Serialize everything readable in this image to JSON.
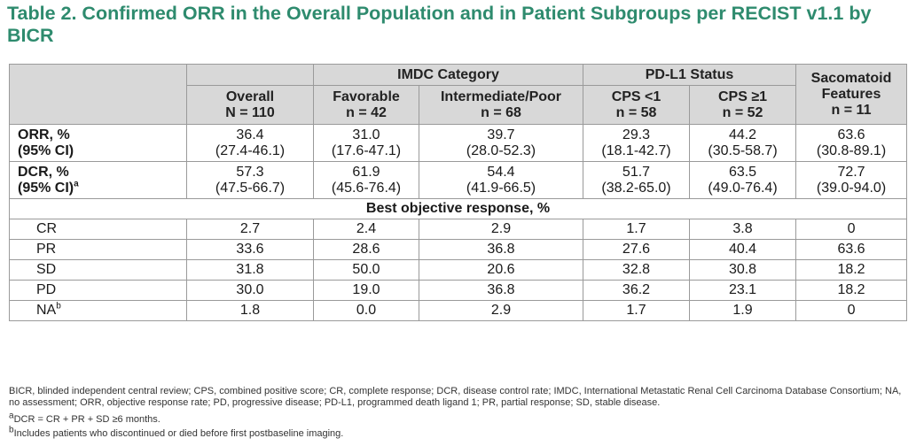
{
  "title": "Table 2. Confirmed ORR in the Overall Population and in Patient Subgroups per RECIST v1.1 by BICR",
  "header": {
    "groups": {
      "imdc": "IMDC Category",
      "pdl1": "PD-L1 Status",
      "sarc_line1": "Sacomatoid"
    },
    "columns": [
      {
        "name": "Overall",
        "n": "N = 110"
      },
      {
        "name": "Favorable",
        "n": "n = 42"
      },
      {
        "name": "Intermediate/Poor",
        "n": "n = 68"
      },
      {
        "name": "CPS <1",
        "n": "n = 58"
      },
      {
        "name": "CPS ≥1",
        "n": "n = 52"
      },
      {
        "name": "Features",
        "n": "n = 11"
      }
    ]
  },
  "rows": {
    "orr": {
      "label1": "ORR, %",
      "label2": "(95% CI)",
      "values": [
        "36.4",
        "31.0",
        "39.7",
        "29.3",
        "44.2",
        "63.6"
      ],
      "ci": [
        "(27.4-46.1)",
        "(17.6-47.1)",
        "(28.0-52.3)",
        "(18.1-42.7)",
        "(30.5-58.7)",
        "(30.8-89.1)"
      ]
    },
    "dcr": {
      "label1": "DCR, %",
      "label2": "(95% CI)",
      "sup": "a",
      "values": [
        "57.3",
        "61.9",
        "54.4",
        "51.7",
        "63.5",
        "72.7"
      ],
      "ci": [
        "(47.5-66.7)",
        "(45.6-76.4)",
        "(41.9-66.5)",
        "(38.2-65.0)",
        "(49.0-76.4)",
        "(39.0-94.0)"
      ]
    },
    "best_response_header": "Best objective response, %",
    "responses": [
      {
        "label": "CR",
        "values": [
          "2.7",
          "2.4",
          "2.9",
          "1.7",
          "3.8",
          "0"
        ]
      },
      {
        "label": "PR",
        "values": [
          "33.6",
          "28.6",
          "36.8",
          "27.6",
          "40.4",
          "63.6"
        ]
      },
      {
        "label": "SD",
        "values": [
          "31.8",
          "50.0",
          "20.6",
          "32.8",
          "30.8",
          "18.2"
        ]
      },
      {
        "label": "PD",
        "values": [
          "30.0",
          "19.0",
          "36.8",
          "36.2",
          "23.1",
          "18.2"
        ]
      },
      {
        "label": "NA",
        "sup": "b",
        "values": [
          "1.8",
          "0.0",
          "2.9",
          "1.7",
          "1.9",
          "0"
        ]
      }
    ]
  },
  "footnotes": {
    "abbrev": "BICR, blinded independent central review; CPS, combined positive score; CR, complete response; DCR, disease control rate; IMDC, International Metastatic Renal Cell Carcinoma Database Consortium; NA, no assessment; ORR, objective response rate; PD, progressive disease; PD-L1, programmed death ligand 1; PR, partial response; SD, stable disease.",
    "a_mark": "a",
    "a_text": "DCR = CR + PR + SD ≥6 months.",
    "b_mark": "b",
    "b_text": "Includes patients who discontinued or died before first postbaseline imaging."
  },
  "colors": {
    "title": "#2e8b6e",
    "header_bg": "#d8d8d8",
    "border": "#9a9a9a"
  }
}
